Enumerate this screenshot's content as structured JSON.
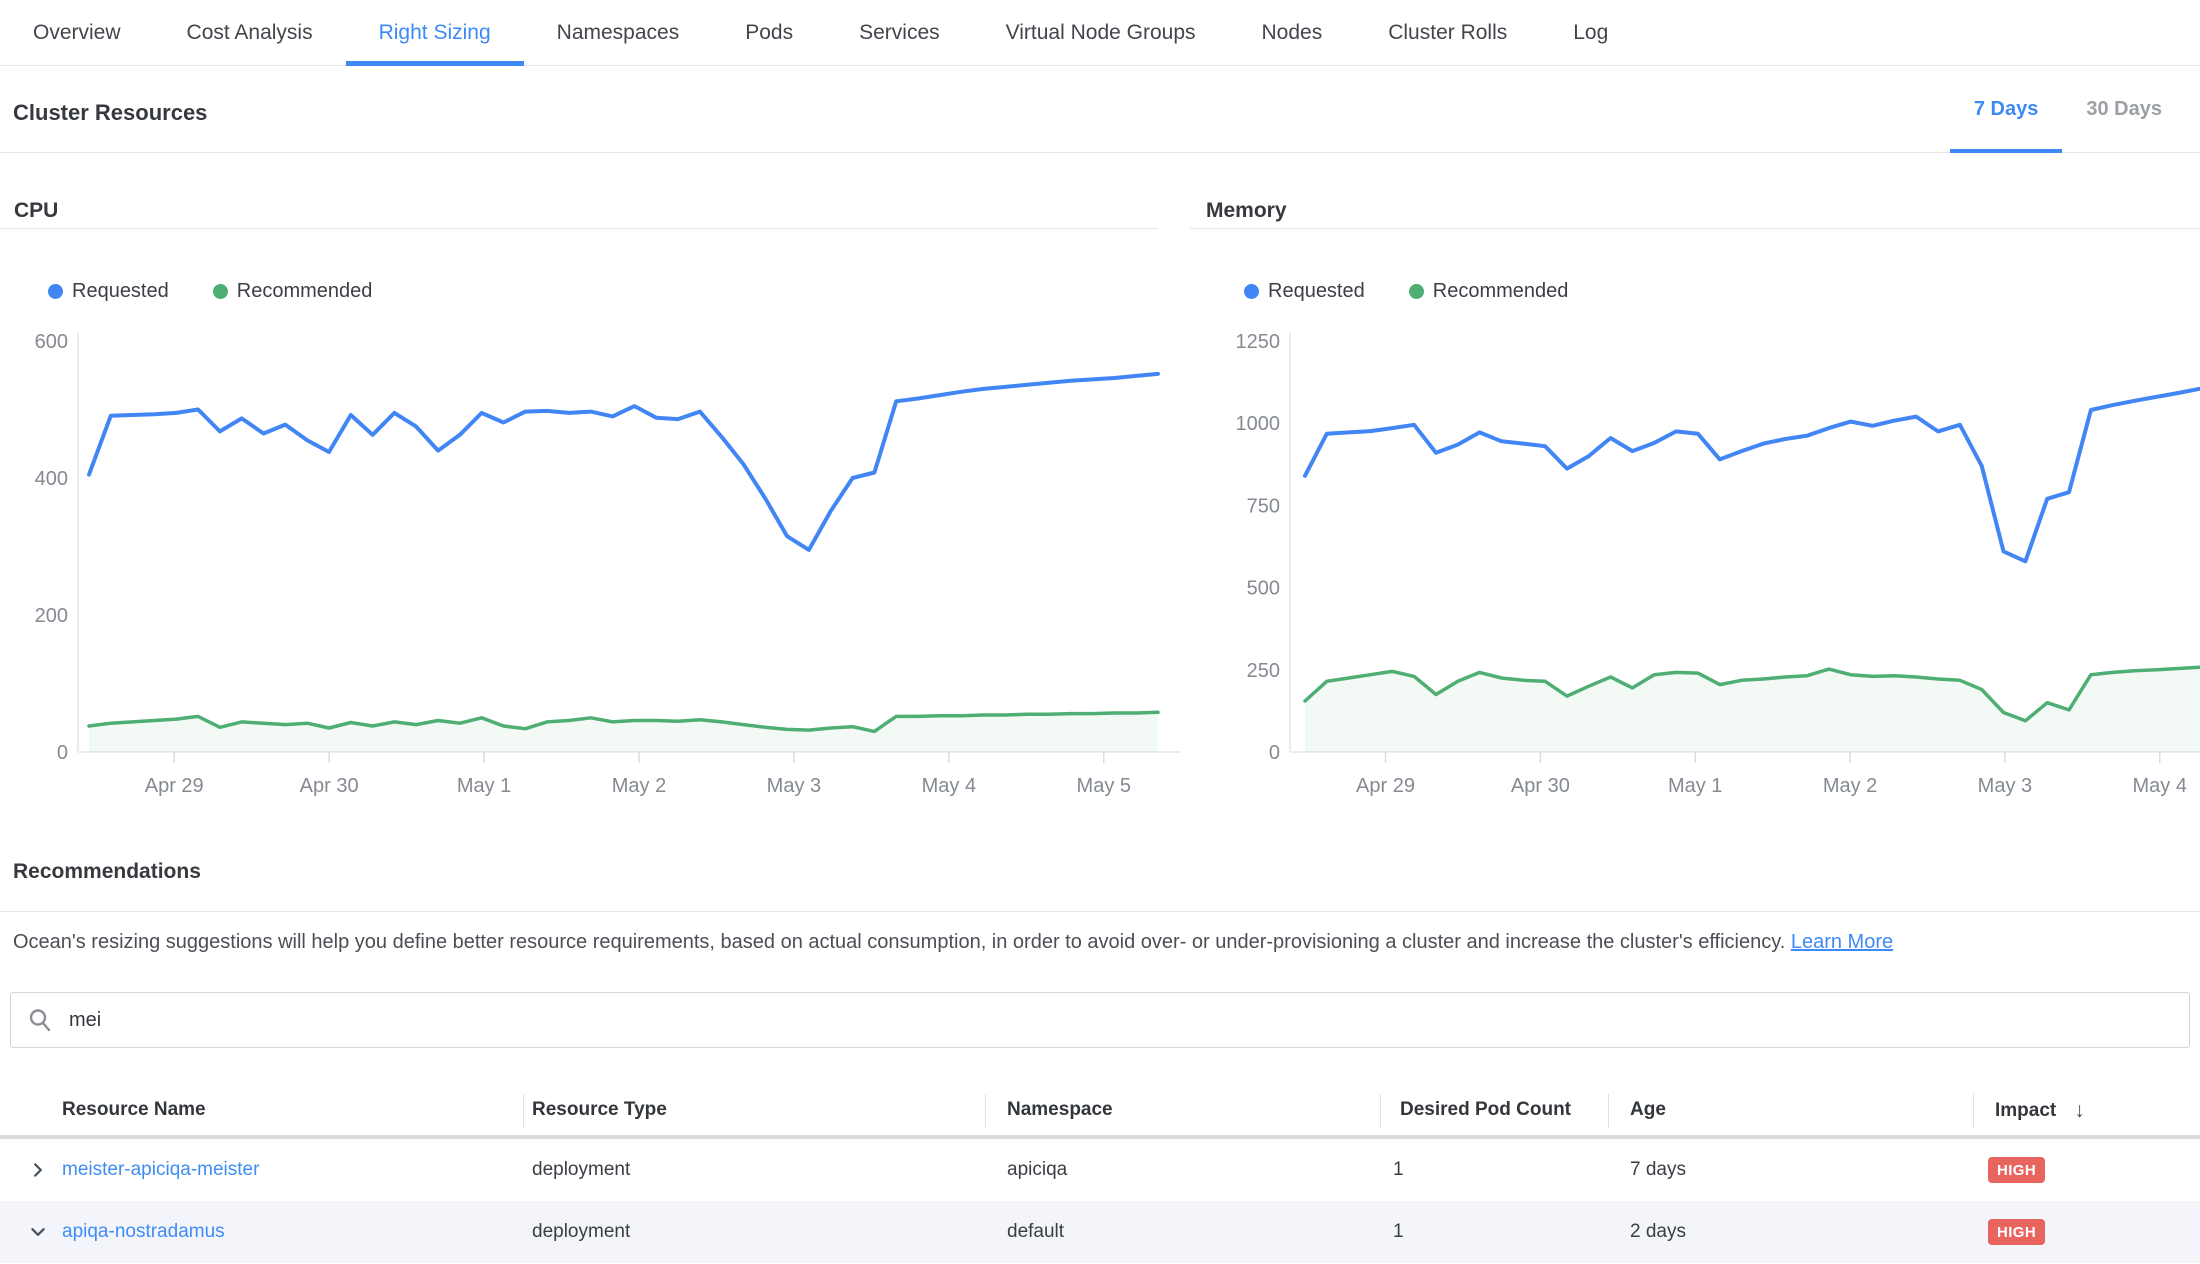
{
  "tabs": {
    "items": [
      {
        "label": "Overview",
        "active": false
      },
      {
        "label": "Cost Analysis",
        "active": false
      },
      {
        "label": "Right Sizing",
        "active": true
      },
      {
        "label": "Namespaces",
        "active": false
      },
      {
        "label": "Pods",
        "active": false
      },
      {
        "label": "Services",
        "active": false
      },
      {
        "label": "Virtual Node Groups",
        "active": false
      },
      {
        "label": "Nodes",
        "active": false
      },
      {
        "label": "Cluster Rolls",
        "active": false
      },
      {
        "label": "Log",
        "active": false
      }
    ]
  },
  "cluster_resources": {
    "title": "Cluster Resources",
    "range_tabs": [
      {
        "label": "7 Days",
        "active": true
      },
      {
        "label": "30 Days",
        "active": false
      }
    ]
  },
  "chart_data": [
    {
      "id": "cpu",
      "type": "line",
      "title": "CPU",
      "legend_position": "top-left",
      "grid": false,
      "ylim": [
        0,
        600
      ],
      "yticks": [
        0,
        200,
        400,
        600
      ],
      "x_tick_labels": [
        "Apr 29",
        "Apr 30",
        "May 1",
        "May 2",
        "May 3",
        "May 4",
        "May 5"
      ],
      "x_start_day": -0.55,
      "x_end_day": 6.35,
      "series": [
        {
          "name": "Requested",
          "color": "#4285f4",
          "values": [
            405,
            491,
            492,
            493,
            495,
            500,
            468,
            487,
            465,
            478,
            455,
            438,
            492,
            463,
            495,
            475,
            440,
            463,
            495,
            481,
            497,
            498,
            495,
            497,
            490,
            505,
            488,
            486,
            497,
            460,
            420,
            370,
            315,
            295,
            352,
            400,
            408,
            512,
            516,
            521,
            526,
            530,
            533,
            536,
            539,
            542,
            544,
            546,
            549,
            552
          ]
        },
        {
          "name": "Recommended",
          "color": "#4fae73",
          "area_fill": "rgba(79,174,115,0.07)",
          "values": [
            38,
            42,
            44,
            46,
            48,
            52,
            36,
            44,
            42,
            40,
            42,
            35,
            43,
            38,
            44,
            40,
            46,
            42,
            50,
            38,
            34,
            44,
            46,
            50,
            44,
            46,
            46,
            45,
            47,
            44,
            40,
            36,
            33,
            32,
            35,
            37,
            30,
            52,
            52,
            53,
            53,
            54,
            54,
            55,
            55,
            56,
            56,
            57,
            57,
            58
          ]
        }
      ]
    },
    {
      "id": "memory",
      "type": "line",
      "title": "Memory",
      "legend_position": "top-left",
      "grid": false,
      "ylim": [
        0,
        1250
      ],
      "yticks": [
        0,
        250,
        500,
        750,
        1000,
        1250
      ],
      "x_tick_labels": [
        "Apr 29",
        "Apr 30",
        "May 1",
        "May 2",
        "May 3",
        "May 4"
      ],
      "x_start_day": -0.52,
      "x_end_day": 5.26,
      "series": [
        {
          "name": "Requested",
          "color": "#4285f4",
          "values": [
            840,
            968,
            972,
            976,
            985,
            995,
            910,
            935,
            972,
            945,
            938,
            930,
            862,
            900,
            955,
            915,
            940,
            975,
            968,
            890,
            915,
            938,
            952,
            962,
            985,
            1005,
            992,
            1008,
            1020,
            975,
            995,
            870,
            610,
            580,
            770,
            790,
            1040,
            1055,
            1068,
            1080,
            1092,
            1105
          ]
        },
        {
          "name": "Recommended",
          "color": "#4fae73",
          "area_fill": "rgba(79,174,115,0.07)",
          "values": [
            155,
            215,
            225,
            235,
            245,
            230,
            175,
            215,
            242,
            225,
            218,
            215,
            170,
            200,
            228,
            195,
            235,
            242,
            240,
            205,
            218,
            222,
            228,
            232,
            252,
            235,
            230,
            232,
            228,
            222,
            218,
            190,
            120,
            95,
            150,
            128,
            235,
            242,
            247,
            250,
            254,
            258
          ]
        }
      ]
    }
  ],
  "recommendations": {
    "title": "Recommendations",
    "description": "Ocean's resizing suggestions will help you define better resource requirements, based on actual consumption, in order to avoid over- or under-provisioning a cluster and increase the cluster's efficiency. ",
    "learn_more": "Learn More"
  },
  "search": {
    "value": "mei"
  },
  "table": {
    "columns": [
      {
        "label": "Resource Name"
      },
      {
        "label": "Resource Type"
      },
      {
        "label": "Namespace"
      },
      {
        "label": "Desired Pod Count"
      },
      {
        "label": "Age"
      },
      {
        "label": "Impact",
        "sorted": "desc"
      }
    ],
    "rows": [
      {
        "name": "meister-apiciqa-meister",
        "type": "deployment",
        "namespace": "apiciqa",
        "desired_pod_count": "1",
        "age": "7 days",
        "impact": "HIGH",
        "expanded": false
      },
      {
        "name": "apiqa-nostradamus",
        "type": "deployment",
        "namespace": "default",
        "desired_pod_count": "1",
        "age": "2 days",
        "impact": "HIGH",
        "expanded": true
      }
    ]
  },
  "colors": {
    "accent_blue": "#3d8af7",
    "chart_requested": "#4285f4",
    "chart_recommended": "#4fae73",
    "impact_high_badge": "#e8655f",
    "axis_label_gray": "#858a92"
  }
}
